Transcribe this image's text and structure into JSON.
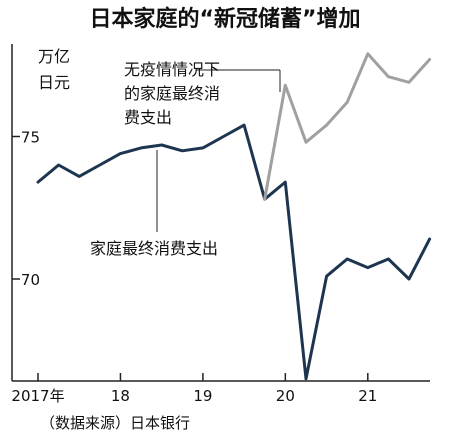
{
  "chart_data": {
    "type": "line",
    "title": "日本家庭的“新冠储蓄”增加",
    "ylabel_line1": "万亿",
    "ylabel_line2": "日元",
    "source": "（数据来源）日本银行",
    "ylim": [
      66,
      78
    ],
    "yticks": [
      70,
      75
    ],
    "xlim": [
      2017.0,
      2021.9
    ],
    "xticks": [
      {
        "value": 2017.0,
        "label": "2017年"
      },
      {
        "value": 2018.0,
        "label": "18"
      },
      {
        "value": 2019.0,
        "label": "19"
      },
      {
        "value": 2020.0,
        "label": "20"
      },
      {
        "value": 2021.0,
        "label": "21"
      }
    ],
    "grid": false,
    "series": [
      {
        "name": "家庭最终消费支出",
        "color": "#1e3550",
        "points": [
          [
            2017.0,
            73.4
          ],
          [
            2017.25,
            74.0
          ],
          [
            2017.5,
            73.6
          ],
          [
            2017.75,
            74.0
          ],
          [
            2018.0,
            74.4
          ],
          [
            2018.25,
            74.6
          ],
          [
            2018.5,
            74.7
          ],
          [
            2018.75,
            74.5
          ],
          [
            2019.0,
            74.6
          ],
          [
            2019.25,
            75.0
          ],
          [
            2019.5,
            75.4
          ],
          [
            2019.75,
            72.8
          ],
          [
            2020.0,
            73.4
          ],
          [
            2020.25,
            66.5
          ],
          [
            2020.5,
            70.1
          ],
          [
            2020.75,
            70.7
          ],
          [
            2021.0,
            70.4
          ],
          [
            2021.25,
            70.7
          ],
          [
            2021.5,
            70.0
          ],
          [
            2021.75,
            71.4
          ]
        ]
      },
      {
        "name": "无疫情情况下的家庭最终消费支出",
        "name_lines": [
          "无疫情情况下",
          "的家庭最终消",
          "费支出"
        ],
        "color": "#a0a0a0",
        "points": [
          [
            2019.75,
            72.8
          ],
          [
            2020.0,
            76.8
          ],
          [
            2020.25,
            74.8
          ],
          [
            2020.5,
            75.4
          ],
          [
            2020.75,
            76.2
          ],
          [
            2021.0,
            77.9
          ],
          [
            2021.25,
            77.1
          ],
          [
            2021.5,
            76.9
          ],
          [
            2021.75,
            77.7
          ]
        ]
      }
    ]
  }
}
